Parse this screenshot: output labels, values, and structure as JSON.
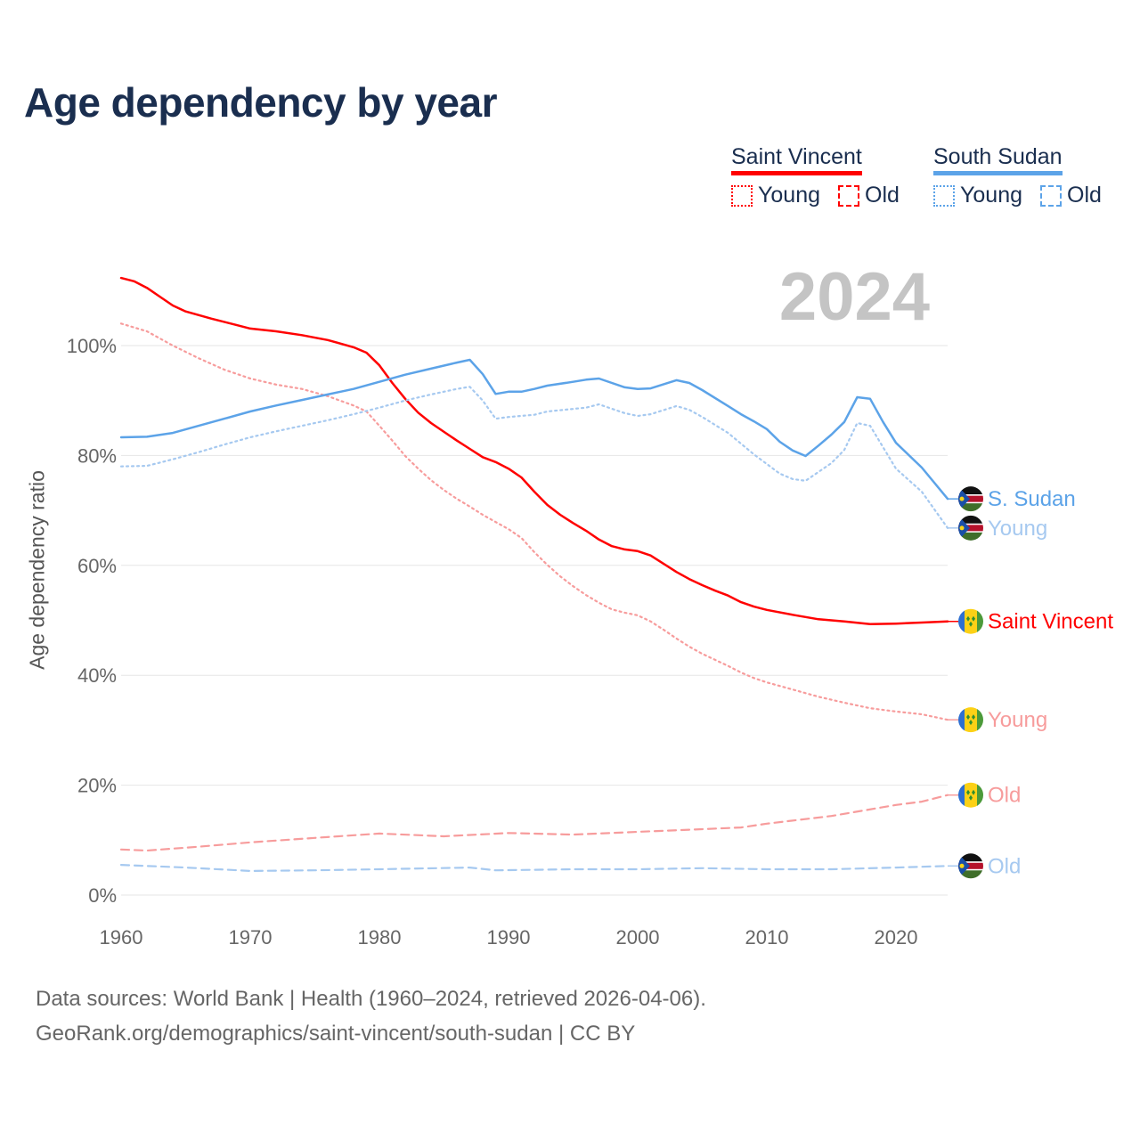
{
  "title": "Age dependency by year",
  "year_label": "2024",
  "legend": {
    "countries": [
      {
        "name": "Saint Vincent",
        "color": "#ff0000",
        "young": "Young",
        "old": "Old"
      },
      {
        "name": "South Sudan",
        "color": "#5ca3e8",
        "young": "Young",
        "old": "Old"
      }
    ]
  },
  "footer": {
    "line1": "Data sources: World Bank | Health (1960–2024, retrieved 2026-04-06).",
    "line2": "GeoRank.org/demographics/saint-vincent/south-sudan | CC BY"
  },
  "chart_data": {
    "type": "line",
    "title": "Age dependency by year",
    "xlabel": "",
    "ylabel": "Age dependency ratio",
    "xlim": [
      1960,
      2024
    ],
    "ylim": [
      0,
      115
    ],
    "x_ticks": [
      "1960",
      "1970",
      "1980",
      "1990",
      "2000",
      "2010",
      "2020"
    ],
    "y_ticks": [
      {
        "v": 0,
        "label": "0%"
      },
      {
        "v": 20,
        "label": "20%"
      },
      {
        "v": 40,
        "label": "40%"
      },
      {
        "v": 60,
        "label": "60%"
      },
      {
        "v": 80,
        "label": "80%"
      },
      {
        "v": 100,
        "label": "100%"
      }
    ],
    "grid": true,
    "series": [
      {
        "name": "Saint Vincent",
        "end_label": "Saint Vincent",
        "flag": "saint-vincent",
        "color": "#ff0000",
        "dash": "solid",
        "x": [
          1960,
          1961,
          1962,
          1963,
          1964,
          1965,
          1967,
          1969,
          1970,
          1972,
          1974,
          1976,
          1978,
          1979,
          1980,
          1981,
          1982,
          1983,
          1984,
          1985,
          1986,
          1987,
          1988,
          1989,
          1990,
          1991,
          1992,
          1993,
          1994,
          1995,
          1996,
          1997,
          1998,
          1999,
          2000,
          2001,
          2002,
          2003,
          2004,
          2005,
          2006,
          2007,
          2008,
          2009,
          2010,
          2012,
          2014,
          2016,
          2018,
          2020,
          2022,
          2024
        ],
        "y": [
          112.3,
          111.7,
          110.5,
          108.9,
          107.3,
          106.2,
          104.9,
          103.7,
          103.1,
          102.6,
          101.9,
          101,
          99.7,
          98.7,
          96.4,
          93.2,
          90.3,
          87.8,
          85.9,
          84.3,
          82.7,
          81.2,
          79.7,
          78.8,
          77.6,
          76,
          73.4,
          71,
          69.2,
          67.7,
          66.3,
          64.7,
          63.5,
          62.9,
          62.6,
          61.8,
          60.3,
          58.8,
          57.5,
          56.4,
          55.4,
          54.5,
          53.3,
          52.5,
          51.9,
          51,
          50.2,
          49.8,
          49.3,
          49.4,
          49.6,
          49.8
        ]
      },
      {
        "name": "Saint Vincent Young",
        "end_label": "Young",
        "flag": "saint-vincent",
        "color": "#f79c9c",
        "dash": "dotted",
        "x": [
          1960,
          1962,
          1964,
          1966,
          1968,
          1970,
          1972,
          1974,
          1976,
          1978,
          1979,
          1980,
          1981,
          1982,
          1983,
          1984,
          1985,
          1986,
          1987,
          1988,
          1989,
          1990,
          1991,
          1992,
          1993,
          1994,
          1995,
          1996,
          1997,
          1998,
          1999,
          2000,
          2001,
          2002,
          2003,
          2004,
          2005,
          2006,
          2007,
          2008,
          2009,
          2010,
          2012,
          2014,
          2016,
          2018,
          2020,
          2022,
          2024
        ],
        "y": [
          104,
          102.6,
          100,
          97.7,
          95.6,
          94,
          92.9,
          92.1,
          90.8,
          89.1,
          88,
          85.4,
          82.7,
          79.9,
          77.6,
          75.5,
          73.7,
          72.1,
          70.7,
          69.2,
          67.9,
          66.6,
          65,
          62.4,
          60.1,
          58,
          56.2,
          54.6,
          53.2,
          52,
          51.4,
          50.9,
          49.8,
          48.3,
          46.7,
          45.2,
          43.9,
          42.8,
          41.7,
          40.5,
          39.5,
          38.7,
          37.4,
          36.1,
          35,
          34,
          33.4,
          32.9,
          31.9
        ]
      },
      {
        "name": "Saint Vincent Old",
        "end_label": "Old",
        "flag": "saint-vincent",
        "color": "#f79c9c",
        "dash": "dashed",
        "x": [
          1960,
          1962,
          1966,
          1970,
          1975,
          1980,
          1985,
          1990,
          1995,
          2000,
          2005,
          2008,
          2010,
          2015,
          2020,
          2022,
          2024
        ],
        "y": [
          8.3,
          8.1,
          8.8,
          9.6,
          10.4,
          11.2,
          10.7,
          11.3,
          11,
          11.5,
          12,
          12.3,
          13,
          14.4,
          16.4,
          17,
          18.2
        ]
      },
      {
        "name": "South Sudan",
        "end_label": "S. Sudan",
        "flag": "south-sudan",
        "color": "#5ca3e8",
        "dash": "solid",
        "x": [
          1960,
          1962,
          1964,
          1966,
          1968,
          1970,
          1972,
          1974,
          1976,
          1978,
          1980,
          1982,
          1984,
          1986,
          1987,
          1988,
          1989,
          1990,
          1991,
          1992,
          1993,
          1995,
          1996,
          1997,
          1999,
          2000,
          2001,
          2003,
          2004,
          2005,
          2007,
          2008,
          2009,
          2010,
          2011,
          2012,
          2013,
          2014,
          2015,
          2016,
          2017,
          2018,
          2019,
          2020,
          2022,
          2024
        ],
        "y": [
          83.3,
          83.4,
          84.1,
          85.4,
          86.7,
          88,
          89.1,
          90.1,
          91.1,
          92.1,
          93.4,
          94.7,
          95.8,
          96.9,
          97.4,
          94.8,
          91.2,
          91.6,
          91.6,
          92.1,
          92.7,
          93.4,
          93.8,
          94,
          92.4,
          92.1,
          92.2,
          93.7,
          93.2,
          91.9,
          89,
          87.5,
          86.2,
          84.8,
          82.5,
          80.9,
          79.9,
          81.8,
          83.8,
          86.1,
          90.6,
          90.3,
          86.1,
          82.3,
          77.8,
          72.1
        ]
      },
      {
        "name": "South Sudan Young",
        "end_label": "Young",
        "flag": "south-sudan",
        "color": "#a6c9f0",
        "dash": "dotted",
        "x": [
          1960,
          1962,
          1964,
          1966,
          1968,
          1970,
          1972,
          1974,
          1976,
          1978,
          1980,
          1982,
          1984,
          1986,
          1987,
          1988,
          1989,
          1990,
          1992,
          1993,
          1996,
          1997,
          1999,
          2000,
          2001,
          2003,
          2004,
          2005,
          2007,
          2009,
          2011,
          2012,
          2013,
          2015,
          2016,
          2017,
          2018,
          2019,
          2020,
          2022,
          2024
        ],
        "y": [
          78,
          78.1,
          79.3,
          80.6,
          82,
          83.3,
          84.4,
          85.4,
          86.4,
          87.5,
          88.7,
          90,
          91.1,
          92.1,
          92.5,
          90,
          86.7,
          87,
          87.4,
          88,
          88.7,
          89.3,
          87.7,
          87.2,
          87.5,
          89,
          88.3,
          87,
          84.1,
          80.2,
          76.7,
          75.7,
          75.4,
          78.6,
          81,
          85.9,
          85.4,
          81.5,
          77.6,
          73.4,
          66.8
        ]
      },
      {
        "name": "South Sudan Old",
        "end_label": "Old",
        "flag": "south-sudan",
        "color": "#a6c9f0",
        "dash": "dashed",
        "x": [
          1960,
          1965,
          1970,
          1975,
          1980,
          1987,
          1989,
          1995,
          2000,
          2005,
          2010,
          2015,
          2020,
          2024
        ],
        "y": [
          5.5,
          5,
          4.4,
          4.5,
          4.7,
          5,
          4.5,
          4.7,
          4.7,
          4.9,
          4.7,
          4.7,
          5,
          5.3
        ]
      }
    ]
  }
}
